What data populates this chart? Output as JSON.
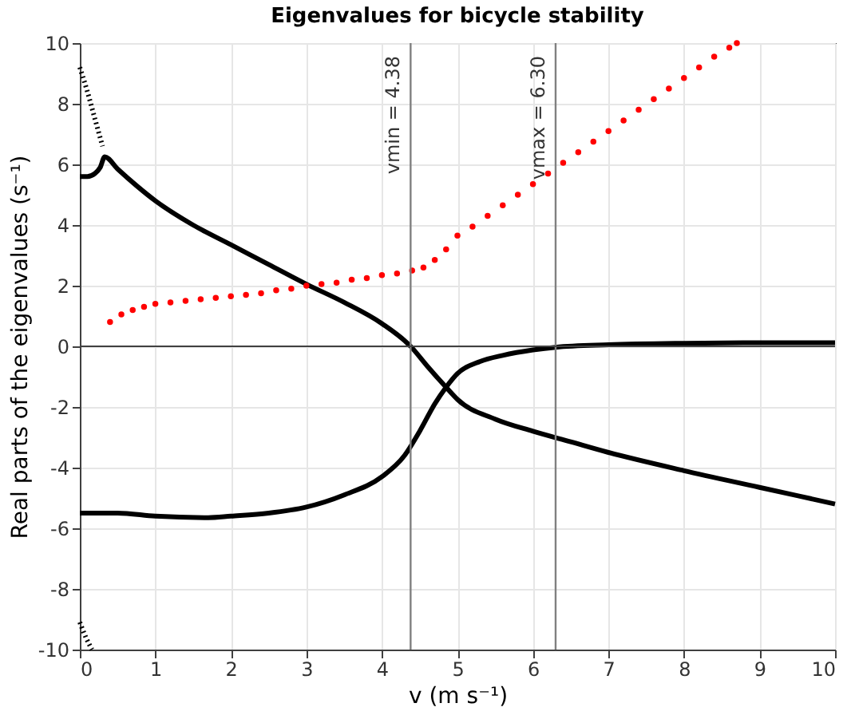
{
  "chart_data": {
    "type": "line",
    "title": "Eigenvalues for bicycle stability",
    "xlabel": "v (m s⁻¹)",
    "ylabel": "Real parts of the eigenvalues (s⁻¹)",
    "xlim": [
      0,
      10
    ],
    "ylim": [
      -10,
      10
    ],
    "xticks": [
      0,
      1,
      2,
      3,
      4,
      5,
      6,
      7,
      8,
      9,
      10
    ],
    "yticks": [
      -10,
      -8,
      -6,
      -4,
      -2,
      0,
      2,
      4,
      6,
      8,
      10
    ],
    "grid": true,
    "marker": "none",
    "line_style": "solid",
    "series": [
      {
        "color": "#000000",
        "x": [
          0,
          0.1,
          0.2,
          0.27,
          0.33,
          0.5,
          0.75,
          1,
          1.5,
          2,
          2.5,
          3,
          3.5,
          4,
          4.38,
          4.6,
          4.85,
          5,
          5.5,
          6,
          6.5,
          7,
          8,
          9,
          10
        ],
        "values": [
          5.6,
          5.6,
          5.7,
          5.9,
          6.25,
          5.85,
          5.3,
          4.8,
          4.0,
          3.35,
          2.7,
          2.05,
          1.45,
          0.75,
          0,
          -0.65,
          -1.35,
          -1.75,
          -2.4,
          -2.8,
          -3.15,
          -3.5,
          -4.1,
          -4.65,
          -5.2
        ]
      },
      {
        "color": "#000000",
        "x": [
          0,
          0.5,
          1,
          1.7,
          2,
          2.5,
          3,
          3.5,
          4,
          4.3,
          4.5,
          4.7,
          4.85,
          5,
          5.3,
          5.6,
          6,
          6.3,
          7,
          8,
          9,
          10
        ],
        "values": [
          -5.5,
          -5.5,
          -5.6,
          -5.65,
          -5.6,
          -5.5,
          -5.3,
          -4.9,
          -4.3,
          -3.6,
          -2.8,
          -1.9,
          -1.35,
          -0.9,
          -0.5,
          -0.3,
          -0.12,
          -0.03,
          0.05,
          0.1,
          0.12,
          0.12
        ]
      },
      {
        "color": "#000000",
        "line_style": "dotted",
        "x": [
          0,
          0.1,
          0.2,
          0.3
        ],
        "values": [
          9.2,
          8.4,
          7.5,
          6.6
        ]
      },
      {
        "color": "#000000",
        "line_style": "dotted",
        "x": [
          0,
          0.08,
          0.16
        ],
        "values": [
          -9.1,
          -9.6,
          -10
        ]
      },
      {
        "type": "scatter",
        "marker": "circle",
        "color": "#ff0000",
        "x": [
          0.4,
          0.55,
          0.7,
          0.85,
          1.0,
          1.2,
          1.4,
          1.6,
          1.8,
          2.0,
          2.2,
          2.4,
          2.6,
          2.8,
          3.0,
          3.2,
          3.4,
          3.6,
          3.8,
          4.0,
          4.2,
          4.4,
          4.55,
          4.7,
          4.85,
          5.0,
          5.2,
          5.4,
          5.6,
          5.8,
          6.0,
          6.2,
          6.4,
          6.6,
          6.8,
          7.0,
          7.2,
          7.4,
          7.6,
          7.8,
          8.0,
          8.2,
          8.4,
          8.6,
          8.7
        ],
        "values": [
          0.8,
          1.05,
          1.2,
          1.3,
          1.4,
          1.45,
          1.5,
          1.55,
          1.6,
          1.65,
          1.7,
          1.75,
          1.85,
          1.9,
          2.0,
          2.05,
          2.1,
          2.2,
          2.25,
          2.35,
          2.4,
          2.5,
          2.6,
          2.85,
          3.2,
          3.65,
          3.95,
          4.3,
          4.65,
          5.0,
          5.35,
          5.7,
          6.05,
          6.4,
          6.75,
          7.1,
          7.45,
          7.8,
          8.15,
          8.5,
          8.85,
          9.2,
          9.55,
          9.85,
          10
        ]
      }
    ],
    "ref_lines": [
      {
        "axis": "x",
        "value": 4.38,
        "label": "vmin = 4.38",
        "color": "#808080"
      },
      {
        "axis": "x",
        "value": 6.3,
        "label": "vmax = 6.30",
        "color": "#808080"
      },
      {
        "axis": "y",
        "value": 0,
        "color": "#404040"
      }
    ]
  }
}
